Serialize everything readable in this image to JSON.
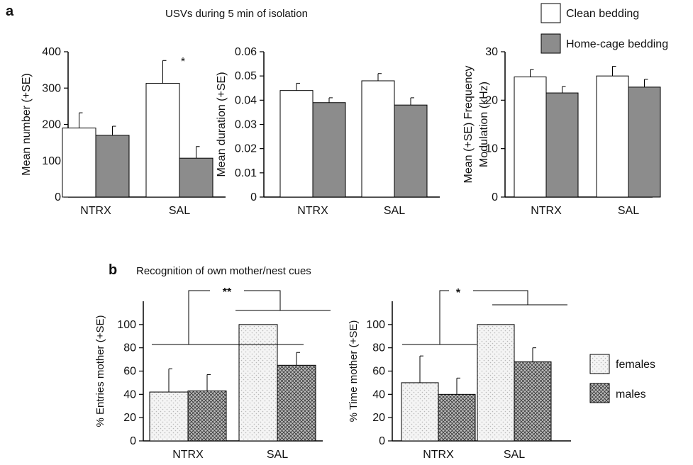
{
  "colors": {
    "clean": "#ffffff",
    "homecage": "#8c8c8c",
    "females_base": "#f4f4f4",
    "females_dot": "#b8b8b8",
    "males_base": "#bdbdbd",
    "males_line": "#3a3a3a",
    "axis": "#000000"
  },
  "panel_a": {
    "label": "a",
    "title": "USVs during 5 min of isolation",
    "legend": [
      {
        "name": "Clean bedding"
      },
      {
        "name": "Home-cage bedding"
      }
    ]
  },
  "panel_b": {
    "label": "b",
    "title": "Recognition of own mother/nest cues",
    "legend": [
      {
        "name": "females"
      },
      {
        "name": "males"
      }
    ]
  },
  "chart_data": [
    {
      "type": "bar",
      "categories": [
        "NTRX",
        "SAL"
      ],
      "ylabel": "Mean number (+SE)",
      "ylim": [
        0,
        400
      ],
      "yticks": [
        0,
        100,
        200,
        300,
        400
      ],
      "series": [
        {
          "name": "Clean bedding",
          "values": [
            190,
            313
          ],
          "errors": [
            42,
            63
          ]
        },
        {
          "name": "Home-cage bedding",
          "values": [
            170,
            107
          ],
          "errors": [
            25,
            32
          ]
        }
      ],
      "annotations": [
        {
          "text": "*"
        }
      ]
    },
    {
      "type": "bar",
      "categories": [
        "NTRX",
        "SAL"
      ],
      "ylabel": "Mean duration (+SE)",
      "ylim": [
        0,
        0.06
      ],
      "yticks": [
        "0",
        "0.01",
        "0.02",
        "0.03",
        "0.04",
        "0.05",
        "0.06"
      ],
      "series": [
        {
          "name": "Clean bedding",
          "values": [
            0.044,
            0.048
          ],
          "errors": [
            0.003,
            0.003
          ]
        },
        {
          "name": "Home-cage bedding",
          "values": [
            0.039,
            0.038
          ],
          "errors": [
            0.002,
            0.003
          ]
        }
      ]
    },
    {
      "type": "bar",
      "categories": [
        "NTRX",
        "SAL"
      ],
      "ylabel": "Mean (+SE) Frequency Modulation (kHz)",
      "ylabel_lines": [
        "Mean (+SE) Frequency",
        "Modulation (kHz)"
      ],
      "ylim": [
        0,
        30
      ],
      "yticks": [
        0,
        10,
        20,
        30
      ],
      "series": [
        {
          "name": "Clean bedding",
          "values": [
            24.8,
            25.0
          ],
          "errors": [
            1.5,
            2.0
          ]
        },
        {
          "name": "Home-cage bedding",
          "values": [
            21.5,
            22.7
          ],
          "errors": [
            1.3,
            1.6
          ]
        }
      ]
    },
    {
      "type": "bar",
      "categories": [
        "NTRX",
        "SAL"
      ],
      "ylabel": "% Entries mother (+SE)",
      "ylim": [
        0,
        120
      ],
      "yticks": [
        0,
        20,
        40,
        60,
        80,
        100
      ],
      "series": [
        {
          "name": "females",
          "values": [
            42,
            100
          ],
          "errors": [
            20,
            0
          ]
        },
        {
          "name": "males",
          "values": [
            43,
            65
          ],
          "errors": [
            14,
            11
          ]
        }
      ],
      "annotations": [
        {
          "text": "**"
        }
      ]
    },
    {
      "type": "bar",
      "categories": [
        "NTRX",
        "SAL"
      ],
      "ylabel": "% Time mother (+SE)",
      "ylim": [
        0,
        120
      ],
      "yticks": [
        0,
        20,
        40,
        60,
        80,
        100
      ],
      "series": [
        {
          "name": "females",
          "values": [
            50,
            100
          ],
          "errors": [
            23,
            0
          ]
        },
        {
          "name": "males",
          "values": [
            40,
            68
          ],
          "errors": [
            14,
            12
          ]
        }
      ],
      "annotations": [
        {
          "text": "*"
        }
      ]
    }
  ]
}
